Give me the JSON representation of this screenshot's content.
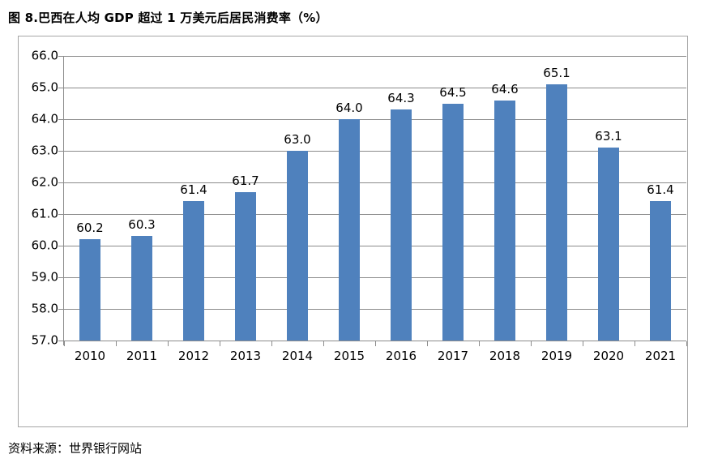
{
  "header": {
    "title": "图 8.巴西在人均 GDP 超过 1 万美元后居民消费率（%）"
  },
  "footer": {
    "source": "资料来源：世界银行网站"
  },
  "chart_data": {
    "type": "bar",
    "title": "图 8.巴西在人均 GDP 超过 1 万美元后居民消费率（%）",
    "categories": [
      "2010",
      "2011",
      "2012",
      "2013",
      "2014",
      "2015",
      "2016",
      "2017",
      "2018",
      "2019",
      "2020",
      "2021"
    ],
    "values": [
      60.2,
      60.3,
      61.4,
      61.7,
      63.0,
      64.0,
      64.3,
      64.5,
      64.6,
      65.1,
      63.1,
      61.4
    ],
    "data_labels": [
      "60.2",
      "60.3",
      "61.4",
      "61.7",
      "63.0",
      "64.0",
      "64.3",
      "64.5",
      "64.6",
      "65.1",
      "63.1",
      "61.4"
    ],
    "xlabel": "",
    "ylabel": "",
    "ylim": [
      57.0,
      66.0
    ],
    "ytick_step": 1.0,
    "ytick_labels": [
      "57.0",
      "58.0",
      "59.0",
      "60.0",
      "61.0",
      "62.0",
      "63.0",
      "64.0",
      "65.0",
      "66.0"
    ],
    "grid": true,
    "legend_position": "none",
    "colors": {
      "bar": "#4f81bd",
      "gridline": "#8c8c8c",
      "axis": "#8c8c8c",
      "plot_border": "#a6a6a6",
      "text": "#000000",
      "background": "#ffffff"
    }
  }
}
